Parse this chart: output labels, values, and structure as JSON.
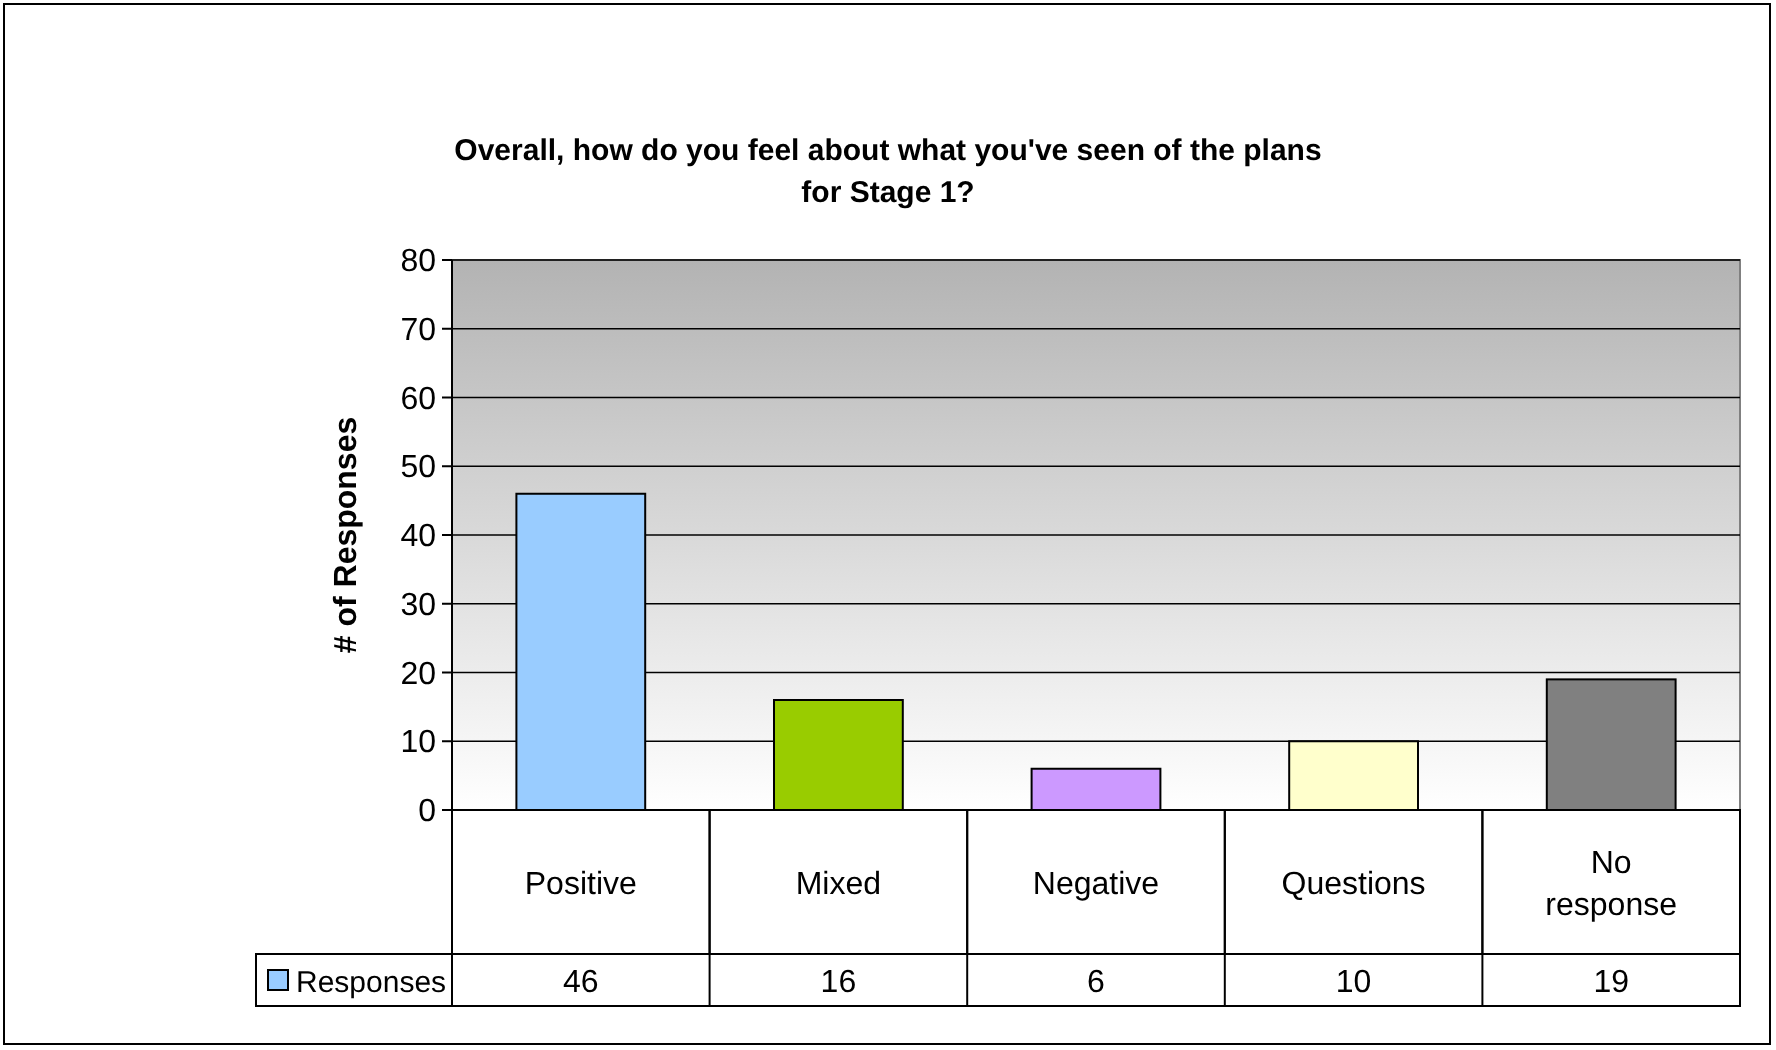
{
  "chart_data": {
    "type": "bar",
    "title": "Overall, how do you feel about what you've seen of the plans for Stage 1?",
    "ylabel": "# of Responses",
    "categories": [
      "Positive",
      "Mixed",
      "Negative",
      "Questions",
      "No response"
    ],
    "series": [
      {
        "name": "Responses",
        "color": "#99ccff",
        "colors": [
          "#99ccff",
          "#99cc00",
          "#cc99ff",
          "#ffffcc",
          "#808080"
        ],
        "values": [
          46,
          16,
          6,
          10,
          19
        ]
      }
    ],
    "ylim": [
      0,
      80
    ],
    "yticks": [
      0,
      10,
      20,
      30,
      40,
      50,
      60,
      70,
      80
    ],
    "grid": "y",
    "data_labels": true,
    "legend": "bottom left"
  }
}
